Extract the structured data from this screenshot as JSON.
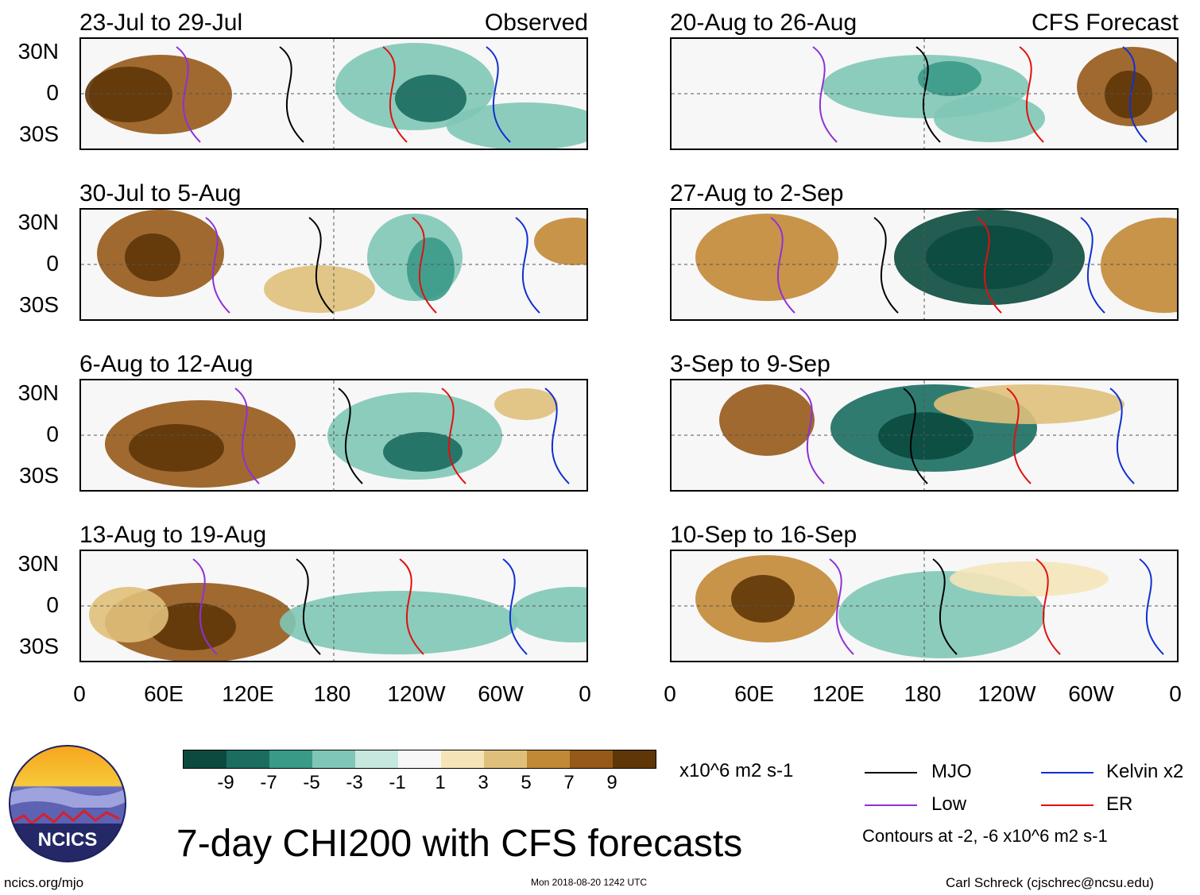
{
  "title": "7-day CHI200 with CFS forecasts",
  "panel_tags": {
    "observed": "Observed",
    "forecast": "CFS Forecast"
  },
  "panels": [
    {
      "period": "23-Jul to 29-Jul",
      "column": "observed"
    },
    {
      "period": "30-Jul to 5-Aug",
      "column": "observed"
    },
    {
      "period": "6-Aug to 12-Aug",
      "column": "observed"
    },
    {
      "period": "13-Aug to 19-Aug",
      "column": "observed"
    },
    {
      "period": "20-Aug to 26-Aug",
      "column": "forecast"
    },
    {
      "period": "27-Aug to 2-Sep",
      "column": "forecast"
    },
    {
      "period": "3-Sep to 9-Sep",
      "column": "forecast"
    },
    {
      "period": "10-Sep to 16-Sep",
      "column": "forecast"
    }
  ],
  "lat_labels": [
    "30N",
    "0",
    "30S"
  ],
  "lon_labels": [
    "0",
    "60E",
    "120E",
    "180",
    "120W",
    "60W",
    "0"
  ],
  "colorbar": {
    "colors": [
      "#0b4a3e",
      "#1a6d5f",
      "#3a9a88",
      "#7fc6b6",
      "#c7e8df",
      "#f7f7f7",
      "#f4e4b8",
      "#dfc07a",
      "#c18836",
      "#96591a",
      "#5e3608"
    ],
    "ticks": [
      "-9",
      "-7",
      "-5",
      "-3",
      "-1",
      "1",
      "3",
      "5",
      "7",
      "9"
    ],
    "units": "x10^6 m2 s-1"
  },
  "legend": [
    {
      "label": "MJO",
      "color": "#000000"
    },
    {
      "label": "Kelvin x2",
      "color": "#1030d0"
    },
    {
      "label": "Low",
      "color": "#9030d8"
    },
    {
      "label": "ER",
      "color": "#e01010"
    }
  ],
  "contour_note": "Contours at -2, -6 x10^6 m2 s-1",
  "logo_text": "NCICS",
  "footer_left": "ncics.org/mjo",
  "footer_center": "Mon 2018-08-20 1242 UTC",
  "footer_right": "Carl Schreck (cjschrec@ncsu.edu)"
}
